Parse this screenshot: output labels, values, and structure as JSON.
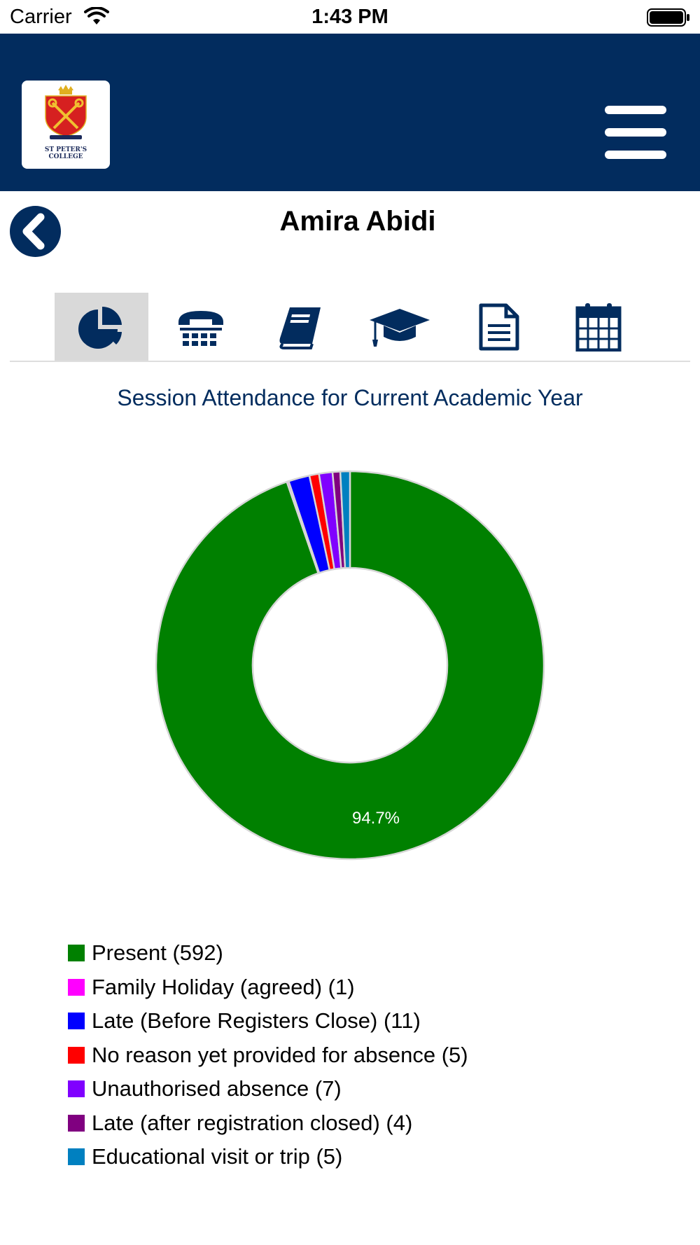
{
  "status_bar": {
    "carrier": "Carrier",
    "time": "1:43 PM"
  },
  "header": {
    "logo_text_line1": "ST PETER'S",
    "logo_text_line2": "COLLEGE",
    "menu_icon": "hamburger-menu-icon"
  },
  "page": {
    "title": "Amira Abidi",
    "back_icon": "chevron-left-icon"
  },
  "tabs": [
    {
      "icon": "pie-chart-icon",
      "active": true
    },
    {
      "icon": "telephone-icon",
      "active": false
    },
    {
      "icon": "book-icon",
      "active": false
    },
    {
      "icon": "graduation-cap-icon",
      "active": false
    },
    {
      "icon": "document-icon",
      "active": false
    },
    {
      "icon": "calendar-icon",
      "active": false
    }
  ],
  "chart_data": {
    "type": "pie",
    "subtype": "donut",
    "title": "Session Attendance for Current Academic Year",
    "slices": [
      {
        "label": "Present",
        "value": 592,
        "color": "#008000"
      },
      {
        "label": "Family Holiday (agreed)",
        "value": 1,
        "color": "#ff00ff"
      },
      {
        "label": "Late (Before Registers Close)",
        "value": 11,
        "color": "#0000ff"
      },
      {
        "label": "No reason yet provided for absence",
        "value": 5,
        "color": "#ff0000"
      },
      {
        "label": "Unauthorised absence",
        "value": 7,
        "color": "#8000ff"
      },
      {
        "label": "Late (after registration closed)",
        "value": 4,
        "color": "#800080"
      },
      {
        "label": "Educational visit or trip",
        "value": 5,
        "color": "#0080c0"
      }
    ],
    "data_labels": [
      {
        "slice": "Present",
        "text": "94.7%"
      }
    ],
    "legend": {
      "position": "bottom-left",
      "items": [
        "Present (592)",
        "Family Holiday (agreed) (1)",
        "Late (Before Registers Close) (11)",
        "No reason yet provided for absence (5)",
        "Unauthorised absence (7)",
        "Late (after registration closed) (4)",
        "Educational visit or trip (5)"
      ]
    }
  }
}
